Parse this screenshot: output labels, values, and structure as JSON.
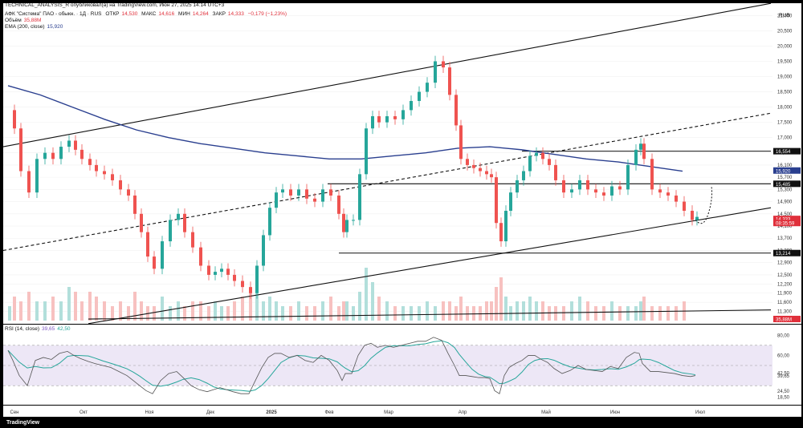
{
  "header": {
    "line1": "TECHNICAL_ANALYSIS_R опубликовал(а) на TradingView.com, Июн 27, 2025 14:14 UTC+3",
    "symbol": "АФК \"Система\" ПАО - обыкн. · 1Д · RUS",
    "ohlc": {
      "open_label": "ОТКР",
      "open": "14,530",
      "high_label": "МАКС",
      "high": "14,616",
      "low_label": "МИН",
      "low": "14,264",
      "close_label": "ЗАКР",
      "close": "14,333",
      "change": "−0,179 (−1,23%)"
    },
    "volume_label": "Объём",
    "volume_value": "35,88M",
    "ema_label": "EMA (200, close)",
    "ema_value": "15,920",
    "rsi_label": "RSI (14, close)",
    "rsi_value1": "39,65",
    "rsi_value2": "42,50",
    "currency": "RUB",
    "brand": "TradingView"
  },
  "colors": {
    "up": "#26a69a",
    "down": "#ef5350",
    "ema": "#2a3f8f",
    "rsi": "#7e57c2",
    "rsi_ma": "#26a69a",
    "trendline": "#111111",
    "bg": "#ffffff",
    "rsi_band": "#ede7f6"
  },
  "chart_data": {
    "type": "candlestick",
    "x_ticks": [
      "Сен",
      "Окт",
      "Ноя",
      "Дек",
      "2025",
      "Фев",
      "Мар",
      "Апр",
      "Май",
      "Июн",
      "Июл"
    ],
    "y_ticks": [
      "21,000",
      "20,500",
      "20,000",
      "19,500",
      "19,000",
      "18,500",
      "18,000",
      "17,500",
      "17,000",
      "16,500",
      "16,100",
      "15,700",
      "15,300",
      "14,900",
      "14,500",
      "14,100",
      "13,700",
      "13,300",
      "12,900",
      "12,500",
      "12,200",
      "11,900",
      "11,600",
      "11,300"
    ],
    "ylim": [
      11000,
      21300
    ],
    "price_labels": [
      {
        "text": "16,554",
        "value": 16554,
        "color": "#111111"
      },
      {
        "text": "15,920",
        "value": 15920,
        "color": "#2a3f8f"
      },
      {
        "text": "15,485",
        "value": 15485,
        "color": "#111111"
      },
      {
        "text": "14,333",
        "value": 14333,
        "color": "#e0303b"
      },
      {
        "text": "08:35:59",
        "value": 14200,
        "color": "#e0303b"
      },
      {
        "text": "13,214",
        "value": 13214,
        "color": "#111111"
      }
    ],
    "volume_label": "35,88M",
    "rsi_ticks": [
      "80,00",
      "60,00",
      "42,50",
      "39,65",
      "24,50",
      "18,50"
    ],
    "rsi_ylim": [
      15,
      85
    ],
    "rsi_levels": [
      70,
      50,
      30
    ],
    "price_path_x": [
      0,
      6,
      14,
      24,
      34,
      44,
      54,
      64,
      74,
      82,
      90,
      100,
      108,
      118,
      128,
      138,
      148,
      156,
      164,
      172,
      180,
      190,
      200,
      210,
      218,
      228,
      238,
      248,
      256,
      264,
      272,
      280,
      290,
      300,
      308,
      316,
      324,
      332,
      340,
      350,
      360,
      370,
      380,
      390,
      400,
      410,
      416,
      420,
      428,
      436,
      444,
      452,
      460,
      470,
      480,
      490,
      500,
      510,
      520,
      530,
      540,
      548,
      556,
      562,
      570,
      578,
      586,
      594,
      600,
      606,
      612,
      618,
      624,
      632,
      640,
      648,
      656,
      664,
      672,
      680,
      690,
      700,
      710,
      720,
      730,
      740,
      750,
      760,
      770,
      780,
      786,
      790,
      800,
      810,
      820,
      830,
      840,
      850,
      856
    ],
    "price_path_y": [
      17900,
      17300,
      15900,
      15200,
      16300,
      16500,
      16300,
      16700,
      16900,
      16600,
      16300,
      16100,
      15900,
      15800,
      15600,
      15300,
      15100,
      14500,
      13900,
      13100,
      12700,
      13600,
      14300,
      14500,
      13900,
      13400,
      12800,
      12500,
      12600,
      12700,
      12500,
      12300,
      12100,
      11900,
      12800,
      13800,
      14700,
      15200,
      15300,
      15100,
      15300,
      15000,
      14900,
      15300,
      15100,
      14500,
      13900,
      14300,
      14300,
      15800,
      17300,
      17700,
      17500,
      17700,
      17600,
      17900,
      18200,
      18500,
      18800,
      19500,
      19300,
      18400,
      17400,
      16300,
      16100,
      16000,
      15900,
      15800,
      15700,
      14200,
      13600,
      14600,
      15200,
      15600,
      15900,
      16400,
      16500,
      16300,
      16100,
      15600,
      15200,
      15300,
      15600,
      15300,
      15200,
      15100,
      15400,
      15300,
      16100,
      16600,
      16800,
      16300,
      15300,
      15200,
      15100,
      14900,
      14600,
      14300,
      14400
    ],
    "rsi_path_y": [
      65,
      55,
      40,
      30,
      55,
      58,
      56,
      62,
      64,
      60,
      57,
      54,
      52,
      50,
      48,
      44,
      40,
      35,
      30,
      25,
      22,
      35,
      42,
      44,
      38,
      30,
      26,
      24,
      26,
      28,
      26,
      24,
      22,
      22,
      35,
      48,
      58,
      62,
      62,
      58,
      60,
      55,
      53,
      60,
      55,
      45,
      35,
      42,
      42,
      60,
      70,
      72,
      68,
      70,
      68,
      70,
      72,
      74,
      74,
      78,
      75,
      62,
      50,
      40,
      40,
      39,
      38,
      38,
      37,
      25,
      22,
      40,
      48,
      52,
      55,
      60,
      60,
      56,
      53,
      47,
      42,
      45,
      50,
      46,
      45,
      44,
      49,
      47,
      58,
      63,
      62,
      52,
      44,
      44,
      43,
      42,
      40,
      39,
      40
    ],
    "ema_path_x": [
      0,
      40,
      80,
      120,
      160,
      200,
      240,
      280,
      320,
      360,
      400,
      440,
      480,
      520,
      560,
      600,
      640,
      680,
      720,
      760,
      800,
      840
    ],
    "ema_path_y": [
      18700,
      18400,
      18000,
      17600,
      17250,
      17000,
      16800,
      16650,
      16500,
      16400,
      16300,
      16300,
      16400,
      16500,
      16650,
      16700,
      16600,
      16450,
      16300,
      16200,
      16050,
      15900
    ],
    "volume_bars": [
      3,
      5,
      4,
      6,
      4,
      4,
      5,
      4,
      7,
      6,
      4,
      6,
      5,
      4,
      3,
      4,
      3,
      6,
      4,
      3,
      3,
      5,
      3,
      4,
      3,
      4,
      4,
      3,
      4,
      3,
      3,
      4,
      5,
      6,
      10,
      4,
      5,
      4,
      3,
      3,
      4,
      3,
      3,
      4,
      5,
      3,
      4,
      4,
      3,
      6,
      11,
      8,
      5,
      4,
      3,
      3,
      3,
      3,
      4,
      3,
      4,
      4,
      3,
      5,
      3,
      3,
      3,
      4,
      4,
      7,
      9,
      5,
      3,
      4,
      4,
      5,
      4,
      4,
      3,
      3,
      3,
      4,
      5,
      4,
      3,
      3,
      4,
      3,
      3,
      3,
      4,
      5,
      3,
      3,
      3,
      3,
      4
    ]
  }
}
